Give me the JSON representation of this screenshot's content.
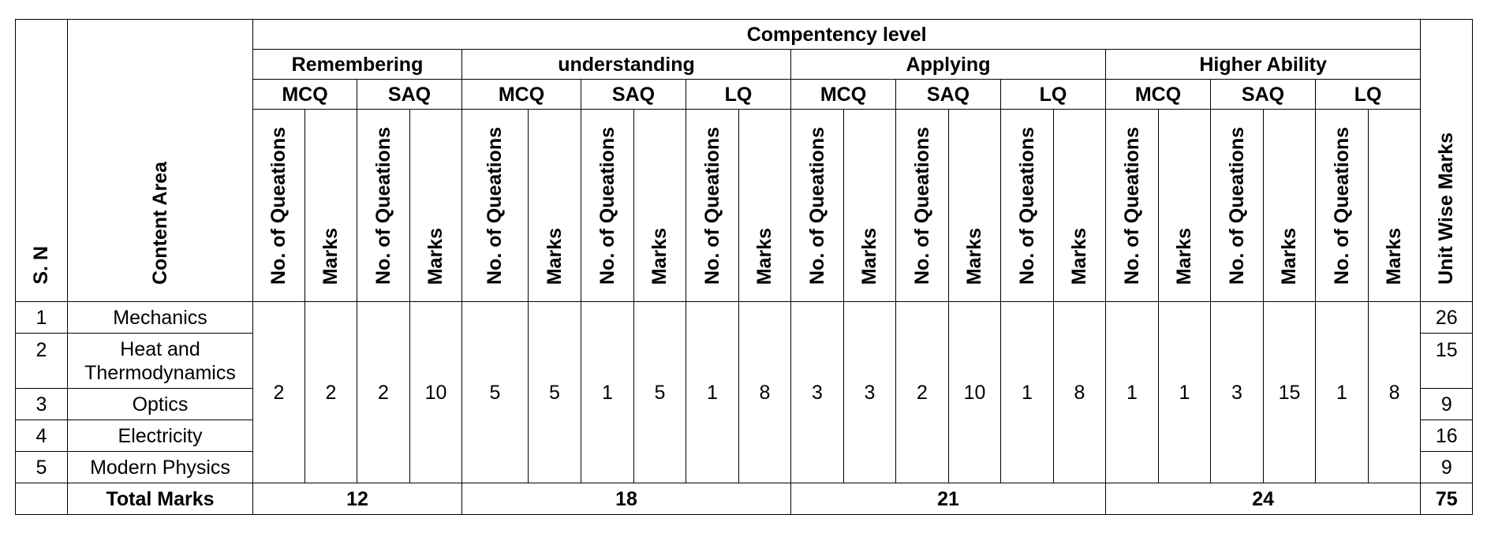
{
  "table": {
    "headers": {
      "sn": "S. N",
      "content_area": "Content Area",
      "competency": "Compentency level",
      "unit_wise": "Unit Wise Marks",
      "levels": [
        "Remembering",
        "understanding",
        "Applying",
        "Higher Ability"
      ],
      "mcq": "MCQ",
      "saq": "SAQ",
      "lq": "LQ",
      "no_of_questions": "No. of Queations",
      "marks": "Marks"
    },
    "rows": [
      {
        "sn": "1",
        "area": "Mechanics",
        "unit_marks": "26"
      },
      {
        "sn": "2",
        "area": "Heat and Thermodynamics",
        "unit_marks": "15"
      },
      {
        "sn": "3",
        "area": "Optics",
        "unit_marks": "9"
      },
      {
        "sn": "4",
        "area": "Electricity",
        "unit_marks": "16"
      },
      {
        "sn": "5",
        "area": "Modern Physics",
        "unit_marks": "9"
      }
    ],
    "merged_values": [
      "2",
      "2",
      "2",
      "10",
      "5",
      "5",
      "1",
      "5",
      "1",
      "8",
      "3",
      "3",
      "2",
      "10",
      "1",
      "8",
      "1",
      "1",
      "3",
      "15",
      "1",
      "8"
    ],
    "total": {
      "label": "Total Marks",
      "remembering": "12",
      "understanding": "18",
      "applying": "21",
      "higher_ability": "24",
      "unit_total": "75"
    }
  }
}
